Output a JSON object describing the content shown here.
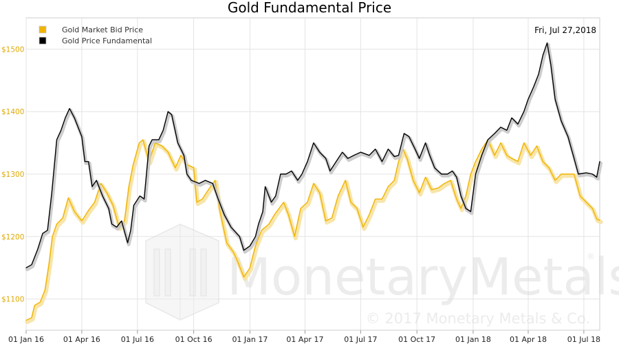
{
  "chart_data": {
    "type": "line",
    "title": "Gold Fundamental Price",
    "date_label": "Fri, Jul 27,2018",
    "watermark": {
      "brand": "MonetaryMetals",
      "copyright": "© 2017 Monetary Metals & Co.",
      "registered": "®"
    },
    "x_range": [
      "2016-01-01",
      "2018-07-27"
    ],
    "ylim": [
      1050,
      1550
    ],
    "y_ticks": [
      {
        "value": 1100,
        "label": "$1100"
      },
      {
        "value": 1200,
        "label": "$1200"
      },
      {
        "value": 1300,
        "label": "$1300"
      },
      {
        "value": 1400,
        "label": "$1400"
      },
      {
        "value": 1500,
        "label": "$1500"
      }
    ],
    "x_ticks": [
      {
        "date": "2016-01-01",
        "label": "01 Jan 16"
      },
      {
        "date": "2016-04-01",
        "label": "01 Apr 16"
      },
      {
        "date": "2016-07-01",
        "label": "01 Jul 16"
      },
      {
        "date": "2016-10-01",
        "label": "01 Oct 16"
      },
      {
        "date": "2017-01-01",
        "label": "01 Jan 17"
      },
      {
        "date": "2017-04-01",
        "label": "01 Apr 17"
      },
      {
        "date": "2017-07-01",
        "label": "01 Jul 17"
      },
      {
        "date": "2017-10-01",
        "label": "01 Oct 17"
      },
      {
        "date": "2018-01-01",
        "label": "01 Jan 18"
      },
      {
        "date": "2018-04-01",
        "label": "01 Apr 18"
      },
      {
        "date": "2018-07-01",
        "label": "01 Jul 18"
      }
    ],
    "grid": true,
    "legend_position": "top-left",
    "series": [
      {
        "name": "Gold Market Bid Price",
        "color": "#f0b400",
        "points": [
          [
            "2016-01-01",
            1066
          ],
          [
            "2016-01-10",
            1070
          ],
          [
            "2016-01-15",
            1090
          ],
          [
            "2016-01-24",
            1095
          ],
          [
            "2016-02-01",
            1115
          ],
          [
            "2016-02-08",
            1160
          ],
          [
            "2016-02-13",
            1200
          ],
          [
            "2016-02-20",
            1220
          ],
          [
            "2016-03-01",
            1230
          ],
          [
            "2016-03-10",
            1262
          ],
          [
            "2016-03-20",
            1240
          ],
          [
            "2016-04-01",
            1225
          ],
          [
            "2016-04-12",
            1242
          ],
          [
            "2016-04-22",
            1255
          ],
          [
            "2016-05-02",
            1285
          ],
          [
            "2016-05-12",
            1270
          ],
          [
            "2016-05-22",
            1250
          ],
          [
            "2016-06-01",
            1215
          ],
          [
            "2016-06-10",
            1225
          ],
          [
            "2016-06-17",
            1280
          ],
          [
            "2016-06-24",
            1315
          ],
          [
            "2016-07-04",
            1350
          ],
          [
            "2016-07-10",
            1355
          ],
          [
            "2016-07-20",
            1320
          ],
          [
            "2016-07-30",
            1350
          ],
          [
            "2016-08-10",
            1345
          ],
          [
            "2016-08-20",
            1335
          ],
          [
            "2016-09-01",
            1310
          ],
          [
            "2016-09-10",
            1330
          ],
          [
            "2016-09-20",
            1315
          ],
          [
            "2016-10-01",
            1310
          ],
          [
            "2016-10-06",
            1255
          ],
          [
            "2016-10-15",
            1260
          ],
          [
            "2016-10-25",
            1275
          ],
          [
            "2016-11-05",
            1290
          ],
          [
            "2016-11-12",
            1245
          ],
          [
            "2016-11-24",
            1190
          ],
          [
            "2016-12-05",
            1175
          ],
          [
            "2016-12-12",
            1160
          ],
          [
            "2016-12-22",
            1135
          ],
          [
            "2017-01-01",
            1150
          ],
          [
            "2017-01-10",
            1185
          ],
          [
            "2017-01-20",
            1210
          ],
          [
            "2017-02-01",
            1220
          ],
          [
            "2017-02-10",
            1235
          ],
          [
            "2017-02-25",
            1255
          ],
          [
            "2017-03-05",
            1235
          ],
          [
            "2017-03-15",
            1200
          ],
          [
            "2017-03-25",
            1245
          ],
          [
            "2017-04-05",
            1255
          ],
          [
            "2017-04-15",
            1285
          ],
          [
            "2017-04-25",
            1270
          ],
          [
            "2017-05-05",
            1225
          ],
          [
            "2017-05-15",
            1230
          ],
          [
            "2017-05-25",
            1265
          ],
          [
            "2017-06-06",
            1290
          ],
          [
            "2017-06-15",
            1255
          ],
          [
            "2017-06-25",
            1245
          ],
          [
            "2017-07-05",
            1215
          ],
          [
            "2017-07-15",
            1235
          ],
          [
            "2017-07-25",
            1260
          ],
          [
            "2017-08-05",
            1260
          ],
          [
            "2017-08-15",
            1280
          ],
          [
            "2017-08-25",
            1290
          ],
          [
            "2017-09-01",
            1320
          ],
          [
            "2017-09-08",
            1340
          ],
          [
            "2017-09-15",
            1325
          ],
          [
            "2017-09-25",
            1290
          ],
          [
            "2017-10-05",
            1270
          ],
          [
            "2017-10-15",
            1295
          ],
          [
            "2017-10-25",
            1275
          ],
          [
            "2017-11-05",
            1278
          ],
          [
            "2017-11-15",
            1285
          ],
          [
            "2017-11-25",
            1290
          ],
          [
            "2017-12-05",
            1260
          ],
          [
            "2017-12-12",
            1245
          ],
          [
            "2017-12-20",
            1265
          ],
          [
            "2017-12-28",
            1300
          ],
          [
            "2018-01-05",
            1320
          ],
          [
            "2018-01-15",
            1340
          ],
          [
            "2018-01-25",
            1355
          ],
          [
            "2018-02-05",
            1330
          ],
          [
            "2018-02-15",
            1350
          ],
          [
            "2018-02-25",
            1330
          ],
          [
            "2018-03-05",
            1325
          ],
          [
            "2018-03-15",
            1320
          ],
          [
            "2018-03-25",
            1350
          ],
          [
            "2018-04-05",
            1330
          ],
          [
            "2018-04-15",
            1345
          ],
          [
            "2018-04-25",
            1320
          ],
          [
            "2018-05-05",
            1310
          ],
          [
            "2018-05-15",
            1290
          ],
          [
            "2018-05-25",
            1300
          ],
          [
            "2018-06-05",
            1300
          ],
          [
            "2018-06-15",
            1300
          ],
          [
            "2018-06-25",
            1265
          ],
          [
            "2018-07-05",
            1255
          ],
          [
            "2018-07-15",
            1245
          ],
          [
            "2018-07-22",
            1228
          ],
          [
            "2018-07-27",
            1226
          ]
        ]
      },
      {
        "name": "Gold Price Fundamental",
        "color": "#000000",
        "points": [
          [
            "2016-01-01",
            1150
          ],
          [
            "2016-01-10",
            1155
          ],
          [
            "2016-01-20",
            1180
          ],
          [
            "2016-01-28",
            1205
          ],
          [
            "2016-02-05",
            1210
          ],
          [
            "2016-02-12",
            1270
          ],
          [
            "2016-02-20",
            1355
          ],
          [
            "2016-02-27",
            1370
          ],
          [
            "2016-03-05",
            1390
          ],
          [
            "2016-03-12",
            1405
          ],
          [
            "2016-03-20",
            1390
          ],
          [
            "2016-04-01",
            1360
          ],
          [
            "2016-04-06",
            1320
          ],
          [
            "2016-04-12",
            1320
          ],
          [
            "2016-04-18",
            1280
          ],
          [
            "2016-04-25",
            1290
          ],
          [
            "2016-05-05",
            1265
          ],
          [
            "2016-05-15",
            1245
          ],
          [
            "2016-05-20",
            1220
          ],
          [
            "2016-05-28",
            1215
          ],
          [
            "2016-06-05",
            1225
          ],
          [
            "2016-06-15",
            1190
          ],
          [
            "2016-06-20",
            1210
          ],
          [
            "2016-06-25",
            1250
          ],
          [
            "2016-07-05",
            1265
          ],
          [
            "2016-07-12",
            1260
          ],
          [
            "2016-07-20",
            1345
          ],
          [
            "2016-07-25",
            1355
          ],
          [
            "2016-08-05",
            1355
          ],
          [
            "2016-08-12",
            1370
          ],
          [
            "2016-08-20",
            1400
          ],
          [
            "2016-08-26",
            1395
          ],
          [
            "2016-09-05",
            1350
          ],
          [
            "2016-09-15",
            1330
          ],
          [
            "2016-09-20",
            1300
          ],
          [
            "2016-09-27",
            1290
          ],
          [
            "2016-10-10",
            1285
          ],
          [
            "2016-10-20",
            1290
          ],
          [
            "2016-11-01",
            1285
          ],
          [
            "2016-11-10",
            1260
          ],
          [
            "2016-11-20",
            1235
          ],
          [
            "2016-12-01",
            1215
          ],
          [
            "2016-12-15",
            1200
          ],
          [
            "2016-12-22",
            1178
          ],
          [
            "2017-01-01",
            1185
          ],
          [
            "2017-01-10",
            1200
          ],
          [
            "2017-01-15",
            1220
          ],
          [
            "2017-01-22",
            1240
          ],
          [
            "2017-01-26",
            1280
          ],
          [
            "2017-02-05",
            1255
          ],
          [
            "2017-02-12",
            1265
          ],
          [
            "2017-02-20",
            1300
          ],
          [
            "2017-03-01",
            1300
          ],
          [
            "2017-03-10",
            1305
          ],
          [
            "2017-03-20",
            1290
          ],
          [
            "2017-03-27",
            1300
          ],
          [
            "2017-04-05",
            1320
          ],
          [
            "2017-04-15",
            1350
          ],
          [
            "2017-04-25",
            1335
          ],
          [
            "2017-05-05",
            1325
          ],
          [
            "2017-05-12",
            1305
          ],
          [
            "2017-05-22",
            1320
          ],
          [
            "2017-06-01",
            1335
          ],
          [
            "2017-06-10",
            1325
          ],
          [
            "2017-06-20",
            1330
          ],
          [
            "2017-07-01",
            1335
          ],
          [
            "2017-07-15",
            1330
          ],
          [
            "2017-07-25",
            1340
          ],
          [
            "2017-08-05",
            1320
          ],
          [
            "2017-08-15",
            1340
          ],
          [
            "2017-08-25",
            1328
          ],
          [
            "2017-09-01",
            1330
          ],
          [
            "2017-09-10",
            1365
          ],
          [
            "2017-09-18",
            1360
          ],
          [
            "2017-09-28",
            1340
          ],
          [
            "2017-10-05",
            1325
          ],
          [
            "2017-10-15",
            1350
          ],
          [
            "2017-10-22",
            1330
          ],
          [
            "2017-10-30",
            1310
          ],
          [
            "2017-11-10",
            1300
          ],
          [
            "2017-11-20",
            1300
          ],
          [
            "2017-11-28",
            1305
          ],
          [
            "2017-12-05",
            1295
          ],
          [
            "2017-12-12",
            1265
          ],
          [
            "2017-12-20",
            1245
          ],
          [
            "2017-12-28",
            1240
          ],
          [
            "2018-01-05",
            1300
          ],
          [
            "2018-01-15",
            1330
          ],
          [
            "2018-01-25",
            1355
          ],
          [
            "2018-02-05",
            1365
          ],
          [
            "2018-02-15",
            1375
          ],
          [
            "2018-02-25",
            1370
          ],
          [
            "2018-03-05",
            1390
          ],
          [
            "2018-03-15",
            1380
          ],
          [
            "2018-03-25",
            1400
          ],
          [
            "2018-04-01",
            1420
          ],
          [
            "2018-04-10",
            1440
          ],
          [
            "2018-04-18",
            1460
          ],
          [
            "2018-04-25",
            1490
          ],
          [
            "2018-05-02",
            1510
          ],
          [
            "2018-05-08",
            1475
          ],
          [
            "2018-05-15",
            1420
          ],
          [
            "2018-05-25",
            1385
          ],
          [
            "2018-06-05",
            1360
          ],
          [
            "2018-06-15",
            1325
          ],
          [
            "2018-06-22",
            1300
          ],
          [
            "2018-07-05",
            1302
          ],
          [
            "2018-07-15",
            1300
          ],
          [
            "2018-07-22",
            1295
          ],
          [
            "2018-07-27",
            1320
          ]
        ]
      }
    ]
  }
}
